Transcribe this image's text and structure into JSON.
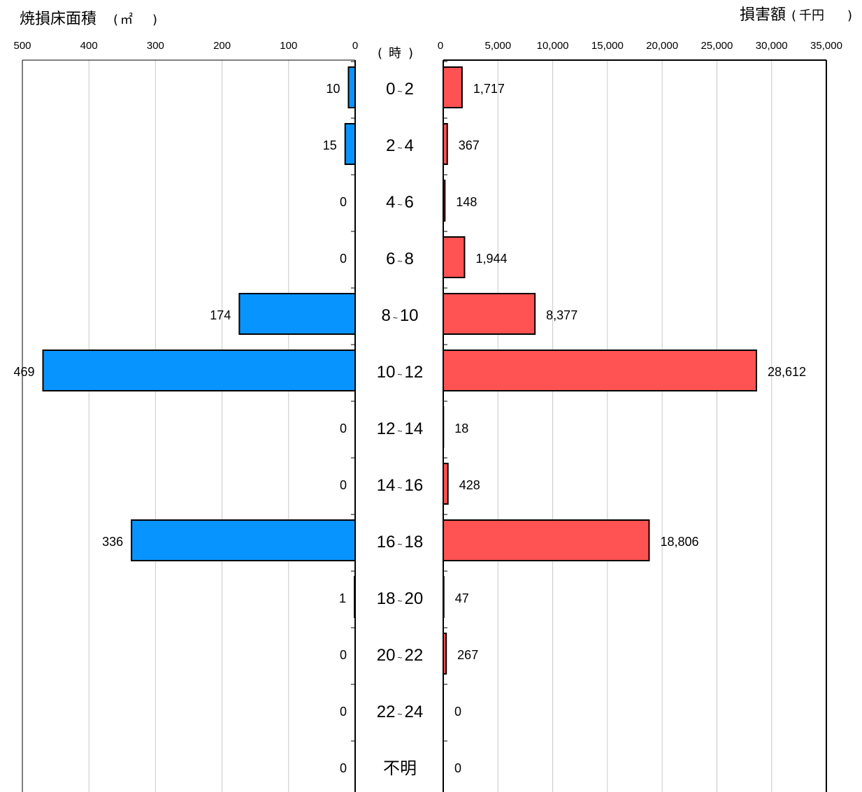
{
  "chart_data": [
    {
      "type": "bar",
      "orientation": "horizontal",
      "direction": "right-to-left",
      "title": "焼損床面積",
      "unit": "㎡",
      "colors": {
        "bar": "#0894ff"
      },
      "xlim": [
        0,
        500
      ],
      "ticks": [
        "500",
        "400",
        "300",
        "200",
        "100",
        "0"
      ],
      "categories": [
        "0~2",
        "2~4",
        "4~6",
        "6~8",
        "8~10",
        "10~12",
        "12~14",
        "14~16",
        "16~18",
        "18~20",
        "20~22",
        "22~24",
        "不明"
      ],
      "values": [
        10,
        15,
        0,
        0,
        174,
        469,
        0,
        0,
        336,
        1,
        0,
        0,
        0
      ],
      "labels": [
        "10",
        "15",
        "0",
        "0",
        "174",
        "469",
        "0",
        "0",
        "336",
        "1",
        "0",
        "0",
        "0"
      ],
      "grid": true
    },
    {
      "type": "bar",
      "orientation": "horizontal",
      "direction": "left-to-right",
      "title": "損害額",
      "unit": "千円",
      "colors": {
        "bar": "#ff5252"
      },
      "xlim": [
        0,
        35000
      ],
      "ticks": [
        "0",
        "5,000",
        "10,000",
        "15,000",
        "20,000",
        "25,000",
        "30,000",
        "35,000"
      ],
      "categories": [
        "0~2",
        "2~4",
        "4~6",
        "6~8",
        "8~10",
        "10~12",
        "12~14",
        "14~16",
        "16~18",
        "18~20",
        "20~22",
        "22~24",
        "不明"
      ],
      "values": [
        1717,
        367,
        148,
        1944,
        8377,
        28612,
        18,
        428,
        18806,
        47,
        267,
        0,
        0
      ],
      "labels": [
        "1,717",
        "367",
        "148",
        "1,944",
        "8,377",
        "28,612",
        "18",
        "428",
        "18,806",
        "47",
        "267",
        "0",
        "0"
      ],
      "grid": true
    }
  ],
  "center_axis": {
    "title": "時",
    "categories": [
      {
        "start": "0",
        "end": "2"
      },
      {
        "start": "2",
        "end": "4"
      },
      {
        "start": "4",
        "end": "6"
      },
      {
        "start": "6",
        "end": "8"
      },
      {
        "start": "8",
        "end": "10"
      },
      {
        "start": "10",
        "end": "12"
      },
      {
        "start": "12",
        "end": "14"
      },
      {
        "start": "14",
        "end": "16"
      },
      {
        "start": "16",
        "end": "18"
      },
      {
        "start": "18",
        "end": "20"
      },
      {
        "start": "20",
        "end": "22"
      },
      {
        "start": "22",
        "end": "24"
      },
      {
        "text": "不明"
      }
    ],
    "separator": "~"
  }
}
